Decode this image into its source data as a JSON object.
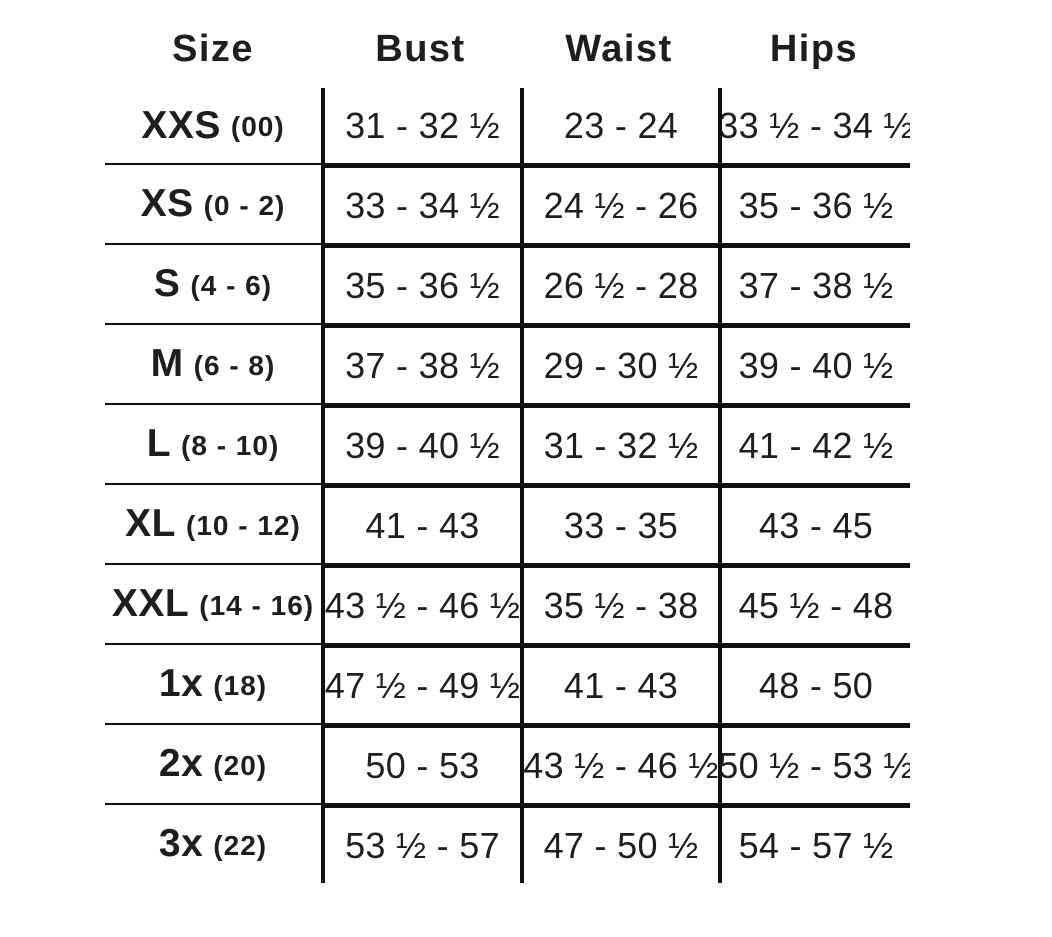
{
  "chart_data": {
    "type": "table",
    "columns": [
      "Size",
      "Bust",
      "Waist",
      "Hips"
    ],
    "rows": [
      {
        "size": "XXS",
        "size_range": "(00)",
        "bust": "31 - 32 ½",
        "waist": "23 - 24",
        "hips": "33 ½ - 34 ½"
      },
      {
        "size": "XS",
        "size_range": "(0 - 2)",
        "bust": "33 - 34 ½",
        "waist": "24 ½ - 26",
        "hips": "35 - 36 ½"
      },
      {
        "size": "S",
        "size_range": "(4 - 6)",
        "bust": "35 - 36 ½",
        "waist": "26 ½ - 28",
        "hips": "37 - 38 ½"
      },
      {
        "size": "M",
        "size_range": "(6 - 8)",
        "bust": "37 - 38 ½",
        "waist": "29 - 30 ½",
        "hips": "39 - 40 ½"
      },
      {
        "size": "L",
        "size_range": "(8 - 10)",
        "bust": "39 - 40 ½",
        "waist": "31 - 32 ½",
        "hips": "41 - 42 ½"
      },
      {
        "size": "XL",
        "size_range": "(10 - 12)",
        "bust": "41 - 43",
        "waist": "33 - 35",
        "hips": "43 - 45"
      },
      {
        "size": "XXL",
        "size_range": "(14 - 16)",
        "bust": "43 ½ - 46 ½",
        "waist": "35 ½ - 38",
        "hips": "45 ½ - 48"
      },
      {
        "size": "1x",
        "size_range": "(18)",
        "bust": "47 ½ - 49 ½",
        "waist": "41 - 43",
        "hips": "48 - 50"
      },
      {
        "size": "2x",
        "size_range": "(20)",
        "bust": "50 - 53",
        "waist": "43 ½ - 46 ½",
        "hips": "50 ½ - 53 ½"
      },
      {
        "size": "3x",
        "size_range": "(22)",
        "bust": "53 ½ - 57",
        "waist": "47 - 50 ½",
        "hips": "54 - 57 ½"
      }
    ],
    "layout": {
      "grid": "vertical lines between columns and horizontal lines between rows; no outer border",
      "legend_position": "none"
    }
  },
  "colors": {
    "text": "#1e1e1e",
    "line": "#101010",
    "background": "#ffffff"
  }
}
